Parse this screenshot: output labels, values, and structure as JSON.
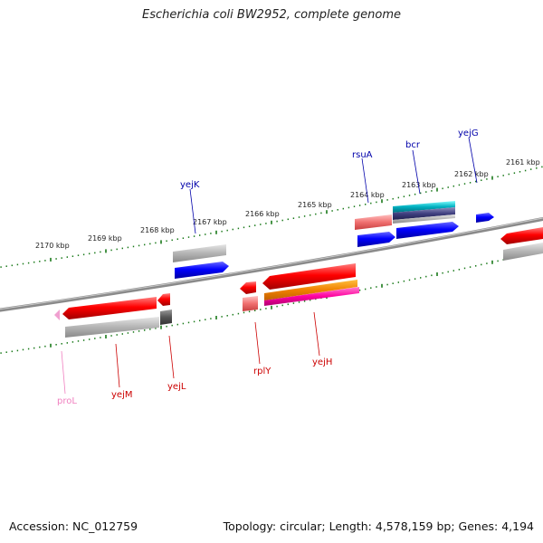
{
  "title": "Escherichia coli BW2952, complete genome",
  "accession": "Accession: NC_012759",
  "summary": "Topology: circular; Length: 4,578,159 bp; Genes: 4,194",
  "colors": {
    "backbone": "#8a8a8a",
    "tick": "#1a7a1a",
    "forward_gene": "#0000e0",
    "reverse_gene": "#e00000",
    "forward_label": "#0000aa",
    "reverse_label": "#cc0000",
    "rrna_label": "#f080c0"
  },
  "scale_labels": [
    "2161 kbp",
    "2162 kbp",
    "2163 kbp",
    "2164 kbp",
    "2165 kbp",
    "2166 kbp",
    "2167 kbp",
    "2168 kbp",
    "2169 kbp",
    "2170 kbp"
  ],
  "gene_labels": [
    "yejG",
    "bcr",
    "rsuA",
    "yejK",
    "yejH",
    "rplY",
    "yejL",
    "yejM",
    "proL"
  ]
}
